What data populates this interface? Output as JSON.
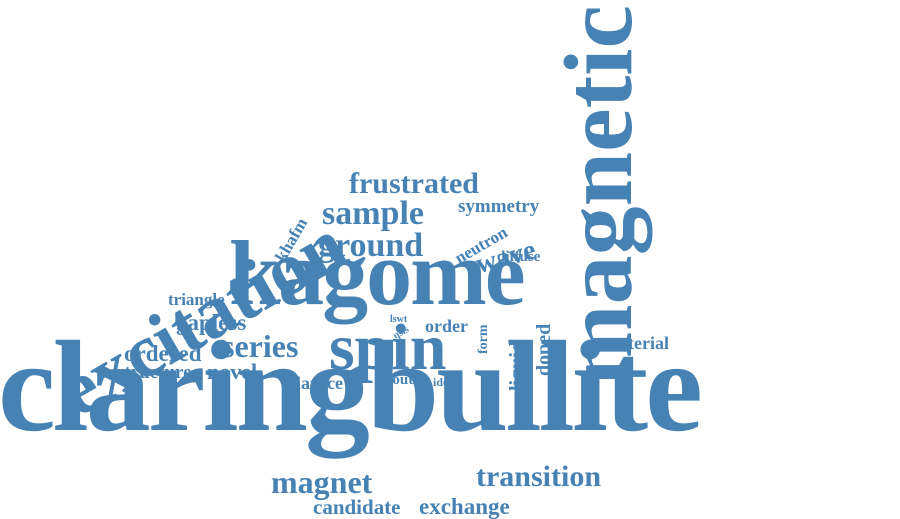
{
  "color": "#4682b4",
  "words": [
    {
      "id": "claringbullite",
      "text": "claringbullite"
    },
    {
      "id": "kagome",
      "text": "kagome"
    },
    {
      "id": "spin",
      "text": "spin"
    },
    {
      "id": "magnetic",
      "text": "magnetic"
    },
    {
      "id": "excitation",
      "text": "excitation"
    },
    {
      "id": "frustrated",
      "text": "frustrated"
    },
    {
      "id": "sample",
      "text": "sample"
    },
    {
      "id": "symmetry",
      "text": "symmetry"
    },
    {
      "id": "ground",
      "text": "ground"
    },
    {
      "id": "wave",
      "text": "wave"
    },
    {
      "id": "neutron",
      "text": "neutron"
    },
    {
      "id": "diffuse",
      "text": "diffuse"
    },
    {
      "id": "khafm",
      "text": "khafm"
    },
    {
      "id": "triangle",
      "text": "triangle"
    },
    {
      "id": "gapless",
      "text": "gapless"
    },
    {
      "id": "series",
      "text": "series"
    },
    {
      "id": "ordered",
      "text": "ordered"
    },
    {
      "id": "structure",
      "text": "structure"
    },
    {
      "id": "novel",
      "text": "novel"
    },
    {
      "id": "lattice",
      "text": "lattice"
    },
    {
      "id": "lswt",
      "text": "lswt"
    },
    {
      "id": "qsls",
      "text": "qsls"
    },
    {
      "id": "order",
      "text": "order"
    },
    {
      "id": "form",
      "text": "form"
    },
    {
      "id": "liquid",
      "text": "liquid"
    },
    {
      "id": "doped",
      "text": "doped"
    },
    {
      "id": "material",
      "text": "material"
    },
    {
      "id": "route",
      "text": "route"
    },
    {
      "id": "ideal",
      "text": "ideal"
    },
    {
      "id": "magnet",
      "text": "magnet"
    },
    {
      "id": "transition",
      "text": "transition"
    },
    {
      "id": "candidate",
      "text": "candidate"
    },
    {
      "id": "exchange",
      "text": "exchange"
    }
  ]
}
